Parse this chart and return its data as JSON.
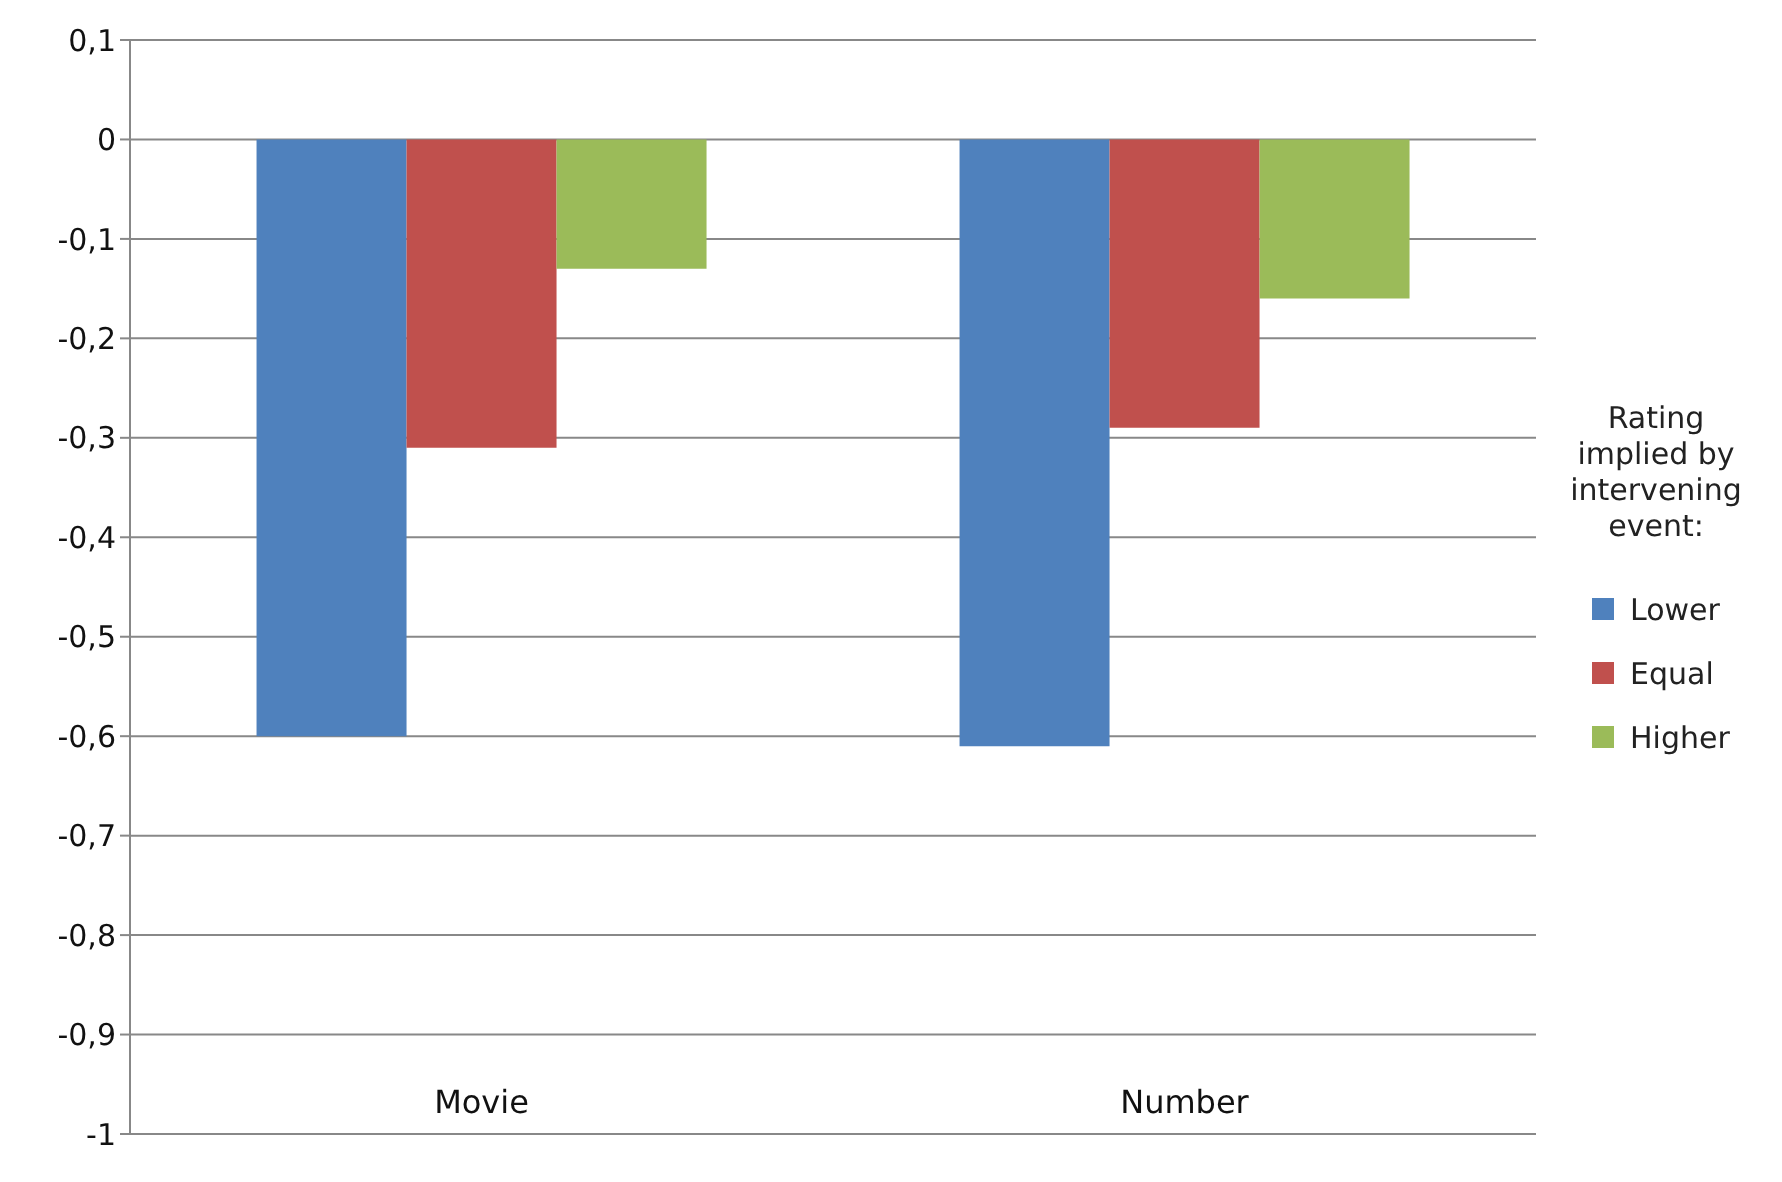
{
  "chart_data": {
    "type": "bar",
    "categories": [
      "Movie",
      "Number"
    ],
    "series": [
      {
        "name": "Lower",
        "color": "#4f81bd",
        "values": [
          -0.6,
          -0.61
        ]
      },
      {
        "name": "Equal",
        "color": "#c0504d",
        "values": [
          -0.31,
          -0.29
        ]
      },
      {
        "name": "Higher",
        "color": "#9bbb59",
        "values": [
          -0.13,
          -0.16
        ]
      }
    ],
    "legend_title": "Rating implied by intervening event:",
    "legend": "right",
    "grid": "y",
    "ylim": [
      -1,
      0.1
    ],
    "yticks": [
      {
        "value": 0.1,
        "label": "0,1"
      },
      0,
      {
        "value": -0.1,
        "label": "-0,1"
      },
      {
        "value": -0.2,
        "label": "-0,2"
      },
      {
        "value": -0.3,
        "label": "-0,3"
      },
      {
        "value": -0.4,
        "label": "-0,4"
      },
      {
        "value": -0.5,
        "label": "-0,5"
      },
      {
        "value": -0.6,
        "label": "-0,6"
      },
      {
        "value": -0.7,
        "label": "-0,7"
      },
      {
        "value": -0.8,
        "label": "-0,8"
      },
      {
        "value": -0.9,
        "label": "-0,9"
      },
      -1
    ]
  }
}
